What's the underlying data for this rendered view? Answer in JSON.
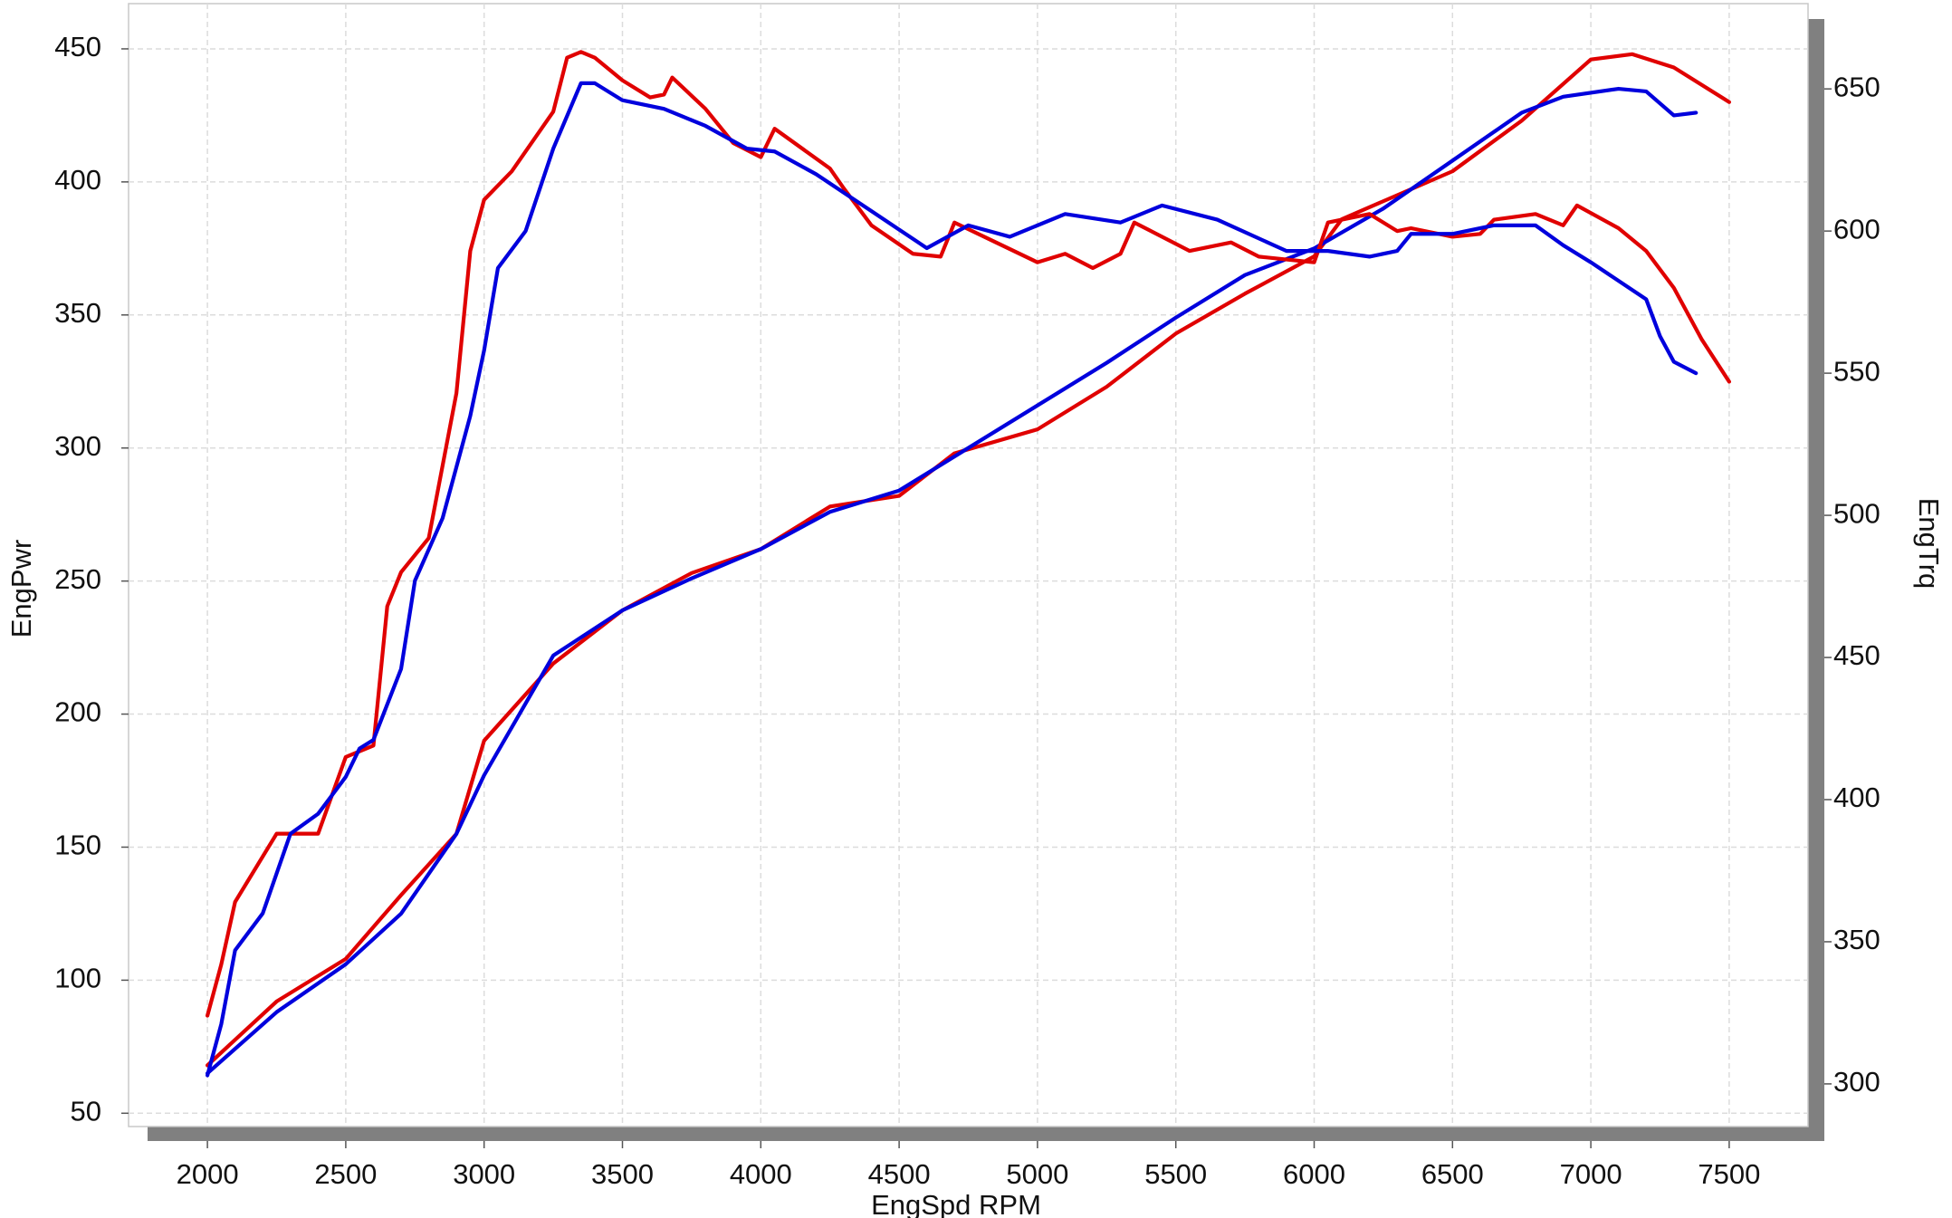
{
  "chart_data": {
    "type": "line",
    "xlabel": "EngSpd  RPM",
    "ylabel": "EngPwr",
    "y2label": "EngTrq",
    "xlim": [
      1715,
      7785
    ],
    "ylim": [
      45,
      467
    ],
    "y2lim": [
      285,
      680
    ],
    "xticks": [
      2000,
      2500,
      3000,
      3500,
      4000,
      4500,
      5000,
      5500,
      6000,
      6500,
      7000,
      7500
    ],
    "yticks": [
      50,
      100,
      150,
      200,
      250,
      300,
      350,
      400,
      450
    ],
    "y2ticks": [
      300,
      350,
      400,
      450,
      500,
      550,
      600,
      650
    ],
    "grid": true,
    "series": [
      {
        "color": "#e00000",
        "axis": "y",
        "x": [
          2000,
          2250,
          2500,
          2700,
          2900,
          3000,
          3250,
          3500,
          3750,
          4000,
          4250,
          4500,
          4700,
          5000,
          5250,
          5500,
          5750,
          6000,
          6100,
          6500,
          6750,
          7000,
          7150,
          7300,
          7500
        ],
        "values": [
          68,
          92,
          108,
          132,
          155,
          190,
          219,
          239,
          253,
          262,
          278,
          282,
          298,
          307,
          323,
          343,
          358,
          372,
          386,
          404,
          423,
          446,
          448,
          443,
          430
        ]
      },
      {
        "color": "#0000dd",
        "axis": "y",
        "x": [
          2000,
          2250,
          2500,
          2700,
          2900,
          3000,
          3250,
          3500,
          3750,
          4000,
          4250,
          4500,
          4750,
          5000,
          5250,
          5500,
          5750,
          6000,
          6250,
          6500,
          6750,
          6900,
          7100,
          7200,
          7300,
          7380
        ],
        "values": [
          65,
          88,
          106,
          125,
          155,
          177,
          222,
          239,
          251,
          262,
          276,
          284,
          300,
          316,
          332,
          349,
          365,
          375,
          390,
          408,
          426,
          432,
          435,
          434,
          425,
          426
        ]
      },
      {
        "color": "#e00000",
        "axis": "y2",
        "x": [
          2000,
          2050,
          2100,
          2250,
          2400,
          2500,
          2600,
          2650,
          2700,
          2800,
          2900,
          2950,
          3000,
          3100,
          3250,
          3300,
          3350,
          3400,
          3500,
          3600,
          3650,
          3680,
          3800,
          3900,
          4000,
          4050,
          4250,
          4300,
          4400,
          4550,
          4650,
          4700,
          4850,
          5000,
          5100,
          5200,
          5300,
          5350,
          5550,
          5700,
          5800,
          5900,
          6000,
          6050,
          6200,
          6300,
          6350,
          6500,
          6600,
          6650,
          6800,
          6900,
          6950,
          7100,
          7200,
          7300,
          7400,
          7500
        ],
        "values": [
          324,
          342,
          364,
          388,
          388,
          415,
          419,
          468,
          480,
          492,
          543,
          593,
          611,
          621,
          642,
          661,
          663,
          661,
          653,
          647,
          648,
          654,
          643,
          631,
          626,
          636,
          622,
          615,
          602,
          592,
          591,
          603,
          596,
          589,
          592,
          587,
          592,
          603,
          593,
          596,
          591,
          590,
          589,
          603,
          606,
          600,
          601,
          598,
          599,
          604,
          606,
          602,
          609,
          601,
          593,
          580,
          562,
          547
        ]
      },
      {
        "color": "#0000dd",
        "axis": "y2",
        "x": [
          2000,
          2050,
          2100,
          2200,
          2300,
          2400,
          2500,
          2550,
          2600,
          2700,
          2750,
          2850,
          2950,
          3000,
          3050,
          3150,
          3250,
          3350,
          3400,
          3500,
          3650,
          3800,
          3950,
          4050,
          4200,
          4400,
          4600,
          4750,
          4900,
          5100,
          5300,
          5450,
          5650,
          5900,
          6050,
          6200,
          6300,
          6350,
          6500,
          6650,
          6800,
          6900,
          7000,
          7200,
          7250,
          7300,
          7380
        ],
        "values": [
          303,
          321,
          347,
          360,
          388,
          395,
          408,
          418,
          421,
          446,
          477,
          499,
          535,
          558,
          587,
          600,
          629,
          652,
          652,
          646,
          643,
          637,
          629,
          628,
          620,
          607,
          594,
          602,
          598,
          606,
          603,
          609,
          604,
          593,
          593,
          591,
          593,
          599,
          599,
          602,
          602,
          595,
          589,
          576,
          563,
          554,
          550
        ]
      }
    ]
  }
}
